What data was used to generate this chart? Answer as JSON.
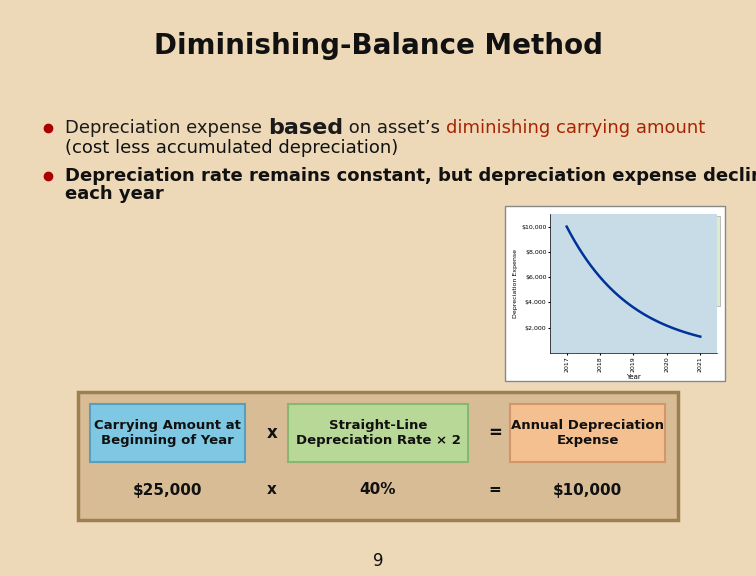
{
  "title": "Diminishing-Balance Method",
  "title_fontsize": 20,
  "title_fontweight": "bold",
  "bg_color": "#EDD9B8",
  "bullet1_parts": [
    {
      "text": "Depreciation expense ",
      "color": "#1a1a1a",
      "weight": "normal",
      "size": 13
    },
    {
      "text": "based",
      "color": "#1a1a1a",
      "weight": "bold",
      "size": 16
    },
    {
      "text": " on asset’s ",
      "color": "#1a1a1a",
      "weight": "normal",
      "size": 13
    },
    {
      "text": "diminishing carrying amount",
      "color": "#AA2200",
      "weight": "normal",
      "size": 13
    }
  ],
  "bullet1_line2": "(cost less accumulated depreciation)",
  "bullet2_line1": "Depreciation rate remains constant, but depreciation expense declines",
  "bullet2_line2": "each year",
  "bullet_fontsize": 13,
  "box_bg": "#C8A878",
  "box_border": "#9E8050",
  "box1_text": "Carrying Amount at\nBeginning of Year",
  "box2_text": "Straight-Line\nDepreciation Rate × 2",
  "box3_text": "Annual Depreciation\nExpense",
  "box1_color": "#7EC8E3",
  "box2_color": "#B8D898",
  "box3_color": "#F4C090",
  "box1_border": "#5A9EBF",
  "box2_border": "#88B870",
  "box3_border": "#D4956A",
  "val1": "$25,000",
  "val2": "40%",
  "val3": "$10,000",
  "page_number": "9",
  "chart_bg": "#C8DCE8",
  "chart_years": [
    2017,
    2018,
    2019,
    2020,
    2021
  ],
  "chart_values": [
    10000,
    6000,
    3600,
    2160,
    1296
  ],
  "chart_yticks": [
    2000,
    4000,
    6000,
    8000,
    10000
  ],
  "chart_ytick_labels": [
    "$2,000",
    "$4,000",
    "$6,000",
    "$8,000",
    "$10,000"
  ]
}
